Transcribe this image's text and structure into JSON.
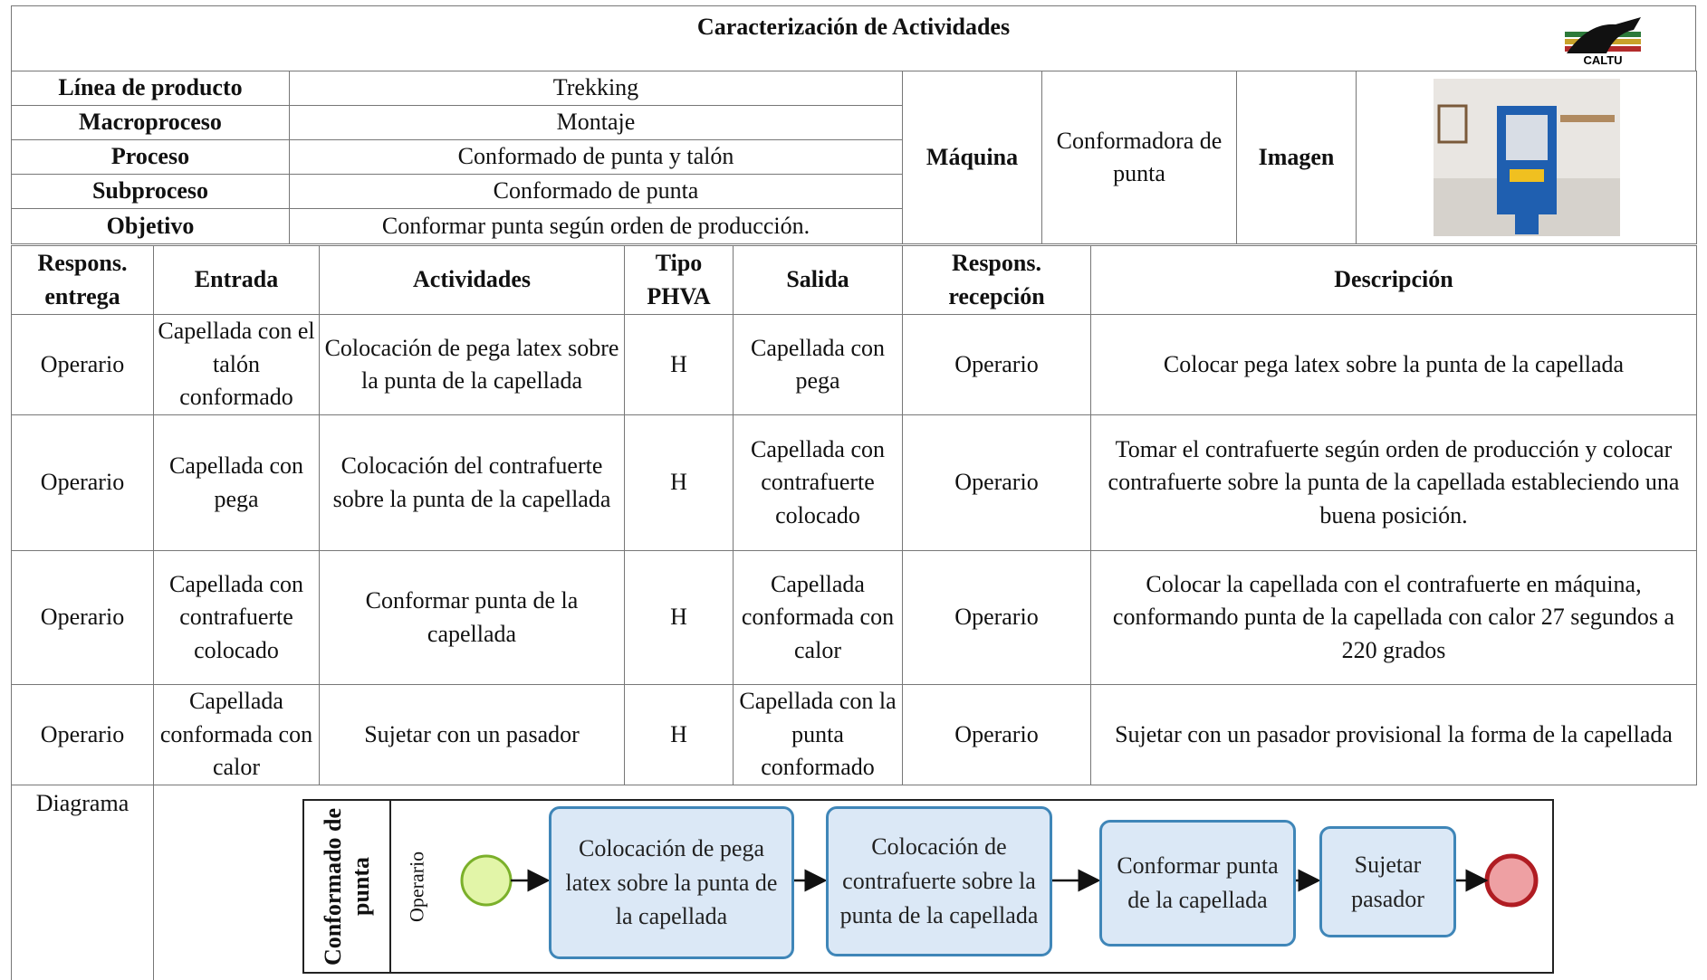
{
  "header": {
    "title": "Caracterización de Actividades",
    "logo_text": "CALTU"
  },
  "info": {
    "rows": [
      [
        "Línea de producto",
        "Trekking"
      ],
      [
        "Macroproceso",
        "Montaje"
      ],
      [
        "Proceso",
        "Conformado de punta y talón"
      ],
      [
        "Subproceso",
        "Conformado de punta"
      ],
      [
        "Objetivo",
        "Conformar punta según orden de producción."
      ]
    ],
    "machine_label": "Máquina",
    "machine": "Conformadora de punta",
    "image_label": "Imagen"
  },
  "table": {
    "headers": [
      "Respons. entrega",
      "Entrada",
      "Actividades",
      "Tipo PHVA",
      "Salida",
      "Respons. recepción",
      "Descripción"
    ],
    "rows": [
      [
        "Operario",
        "Capellada con el talón conformado",
        "Colocación de pega latex sobre la punta de la capellada",
        "H",
        "Capellada con pega",
        "Operario",
        "Colocar pega latex sobre la punta de la capellada"
      ],
      [
        "Operario",
        "Capellada con pega",
        "Colocación del contrafuerte sobre la punta de la capellada",
        "H",
        "Capellada con contrafuerte colocado",
        "Operario",
        "Tomar el contrafuerte según orden de producción y colocar contrafuerte sobre la punta de la capellada estableciendo una buena posición."
      ],
      [
        "Operario",
        "Capellada con contrafuerte colocado",
        "Conformar punta de la capellada",
        "H",
        "Capellada conformada con calor",
        "Operario",
        "Colocar la capellada con el contrafuerte en máquina, conformando punta de la capellada con calor 27 segundos a 220 grados"
      ],
      [
        "Operario",
        "Capellada conformada con calor",
        "Sujetar con un pasador",
        "H",
        "Capellada con la punta conformado",
        "Operario",
        "Sujetar con un pasador provisional la forma de la capellada"
      ]
    ]
  },
  "diagram": {
    "label": "Diagrama",
    "pool": "Conformado de punta",
    "lane": "Operario",
    "tasks": [
      "Colocación de pega latex sobre la punta de la capellada",
      "Colocación de contrafuerte sobre la punta de la capellada",
      "Conformar punta de la capellada",
      "Sujetar pasador"
    ]
  }
}
